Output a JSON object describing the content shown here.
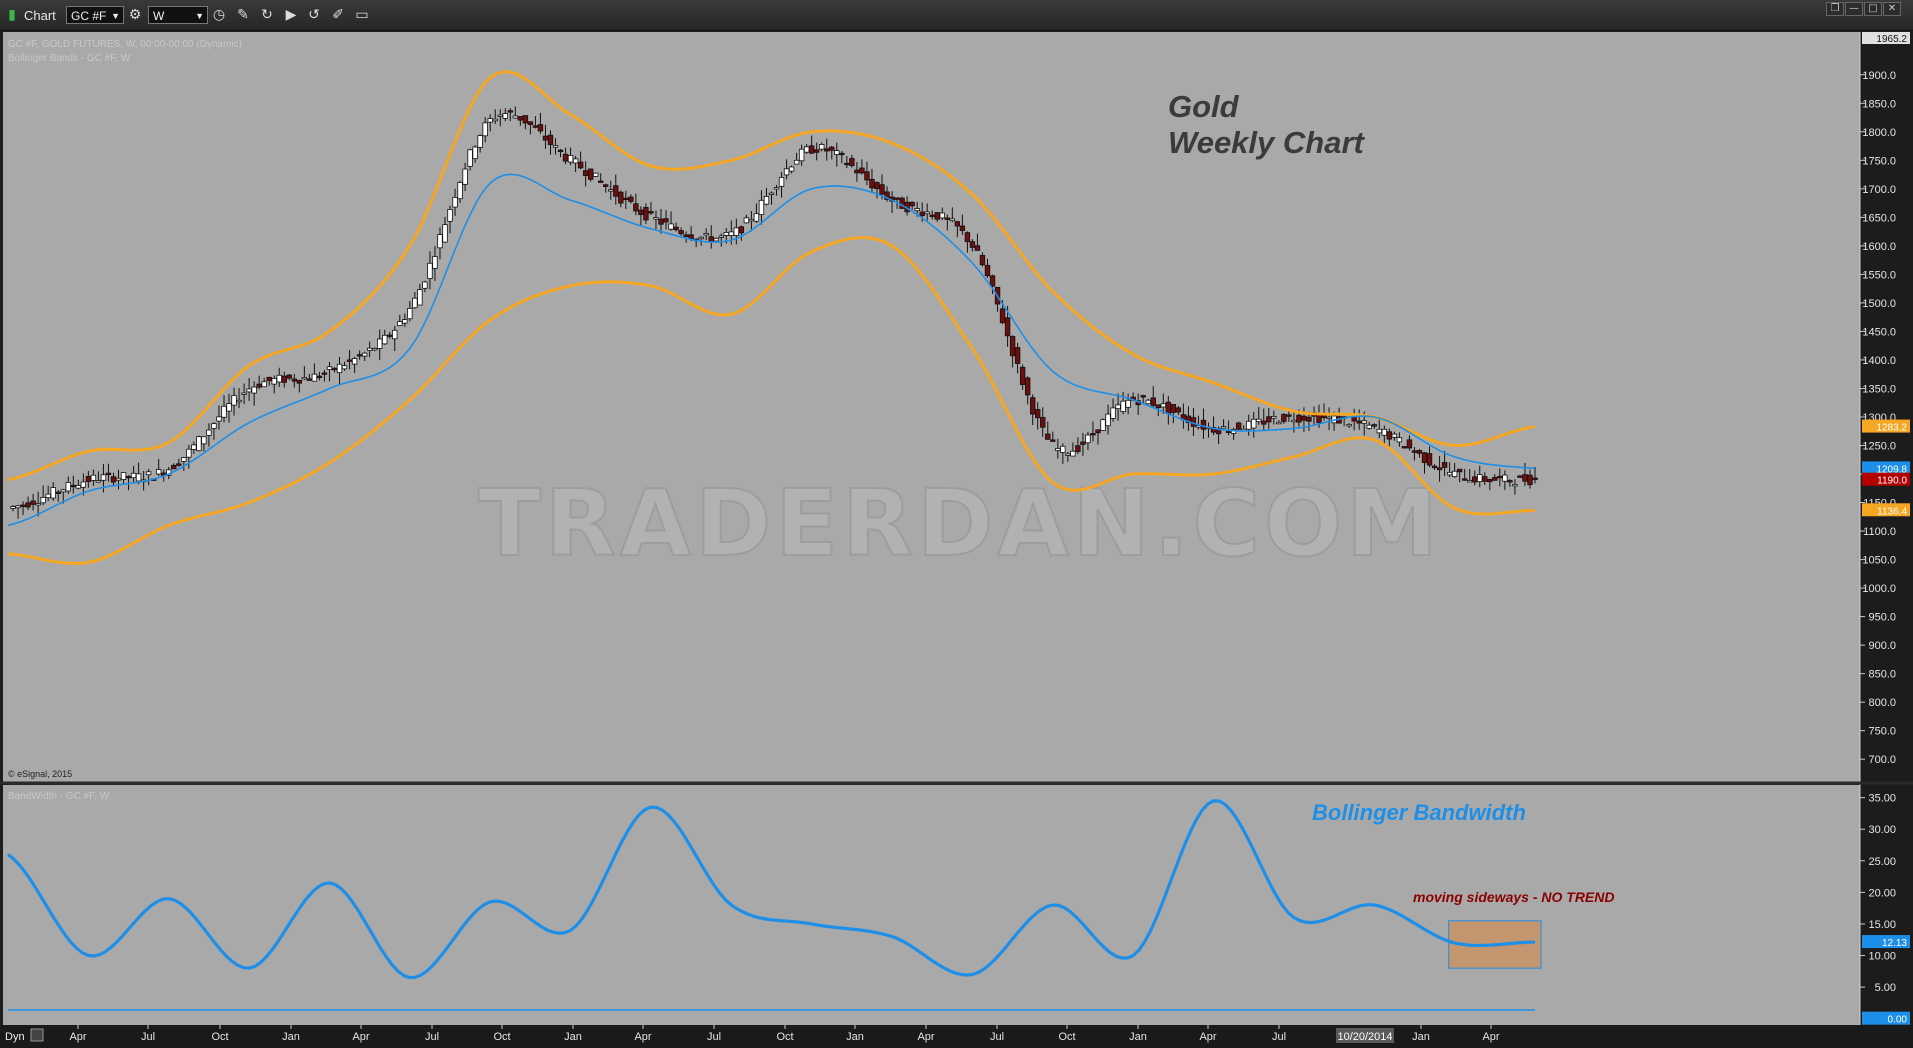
{
  "window": {
    "title": "Chart",
    "symbol": "GC #F",
    "interval": "W"
  },
  "price_pane": {
    "study_line1": "GC #F, GOLD FUTURES, W, 00:00-00:00 (Dynamic)",
    "study_line2": "Bollinger Bands - GC #F, W",
    "headline1": "Gold",
    "headline2": "Weekly Chart",
    "watermark": "TRADERDAN.COM",
    "copyright": "© eSignal, 2015",
    "top_label": "1965.2",
    "markers": [
      {
        "text": "1283.2",
        "value": 1283.2,
        "color": "#f5a623"
      },
      {
        "text": "1209.8",
        "value": 1209.8,
        "color": "#1e8fe8"
      },
      {
        "text": "1190.0",
        "value": 1190.0,
        "color": "#b30000"
      },
      {
        "text": "1136.4",
        "value": 1136.4,
        "color": "#f5a623"
      }
    ]
  },
  "bandwidth_pane": {
    "study_label": "BandWidth - GC #F, W",
    "title": "Bollinger Bandwidth",
    "annotation": "moving sideways - NO TREND",
    "marker": {
      "text": "12.13",
      "value": 12.13,
      "color": "#1e8fe8"
    },
    "zero_marker": {
      "text": "0.00",
      "value": 0.0,
      "color": "#1e8fe8"
    }
  },
  "x_axis": {
    "dyn_label": "Dyn",
    "highlight_label": "10/20/2014",
    "ticks": [
      "Apr",
      "Jul",
      "Oct",
      "Jan",
      "Apr",
      "Jul",
      "Oct",
      "Jan",
      "Apr",
      "Jul",
      "Oct",
      "Jan",
      "Apr",
      "Jul",
      "Oct",
      "Jan",
      "Apr",
      "Jul",
      "Jan",
      "Apr"
    ]
  },
  "colors": {
    "background": "#a9a9a9",
    "bollinger_bands": "#f5a623",
    "moving_average": "#1e8fe8",
    "up_candle": "#ffffff",
    "down_candle": "#6b0f0f",
    "bandwidth_line": "#1e8fe8",
    "annotation": "#8b0000",
    "sideways_box": "#c49670"
  },
  "chart_data": [
    {
      "type": "line",
      "title": "Gold Weekly Chart",
      "y_axis_ticks": [
        "1900.0",
        "1850.0",
        "1800.0",
        "1750.0",
        "1700.0",
        "1650.0",
        "1600.0",
        "1550.0",
        "1500.0",
        "1450.0",
        "1400.0",
        "1350.0",
        "1300.0",
        "1250.0",
        "1200.0",
        "1150.0",
        "1100.0",
        "1050.0",
        "1000.0",
        "950.0",
        "900.0",
        "850.0",
        "800.0",
        "750.0",
        "700.0"
      ],
      "ylim": [
        660,
        1975
      ],
      "x": [
        "Apr",
        "Jul",
        "Oct",
        "Jan",
        "Apr",
        "Jul",
        "Oct",
        "Jan",
        "Apr",
        "Jul",
        "Oct",
        "Jan",
        "Apr",
        "Jul",
        "Oct",
        "Jan",
        "Apr",
        "Jul",
        "Jan",
        "Apr"
      ],
      "series": [
        {
          "name": "Upper Band",
          "values": [
            1190,
            1240,
            1255,
            1390,
            1450,
            1600,
            1895,
            1830,
            1740,
            1750,
            1800,
            1780,
            1690,
            1520,
            1410,
            1360,
            1310,
            1300,
            1250,
            1283
          ]
        },
        {
          "name": "Middle Band",
          "values": [
            1110,
            1170,
            1200,
            1290,
            1350,
            1420,
            1710,
            1680,
            1630,
            1610,
            1700,
            1680,
            1570,
            1380,
            1330,
            1280,
            1280,
            1300,
            1230,
            1210
          ]
        },
        {
          "name": "Lower Band",
          "values": [
            1060,
            1045,
            1110,
            1150,
            1220,
            1330,
            1470,
            1530,
            1530,
            1480,
            1590,
            1600,
            1420,
            1185,
            1200,
            1200,
            1230,
            1260,
            1140,
            1136
          ]
        },
        {
          "name": "Close",
          "values": [
            1140,
            1190,
            1210,
            1350,
            1380,
            1490,
            1820,
            1750,
            1650,
            1620,
            1770,
            1680,
            1600,
            1250,
            1330,
            1280,
            1300,
            1280,
            1200,
            1190
          ]
        }
      ]
    },
    {
      "type": "line",
      "title": "Bollinger Bandwidth",
      "y_axis_ticks": [
        "35.00",
        "30.00",
        "25.00",
        "20.00",
        "15.00",
        "10.00",
        "5.00"
      ],
      "ylim": [
        -1,
        37
      ],
      "x": [
        "Apr",
        "Jul",
        "Oct",
        "Jan",
        "Apr",
        "Jul",
        "Oct",
        "Jan",
        "Apr",
        "Jul",
        "Oct",
        "Jan",
        "Apr",
        "Jul",
        "Oct",
        "Jan",
        "Apr",
        "Jul",
        "Jan",
        "Apr"
      ],
      "series": [
        {
          "name": "BandWidth",
          "values": [
            26,
            10,
            19,
            8,
            21.5,
            6.5,
            18.5,
            14,
            33.5,
            18,
            15,
            13,
            7,
            18,
            10,
            34.5,
            16,
            18,
            12,
            12.13
          ]
        }
      ],
      "annotation_box": {
        "label": "moving sideways - NO TREND",
        "from": "Jan",
        "to": "Apr",
        "ylim": [
          8,
          15.5
        ]
      }
    }
  ]
}
